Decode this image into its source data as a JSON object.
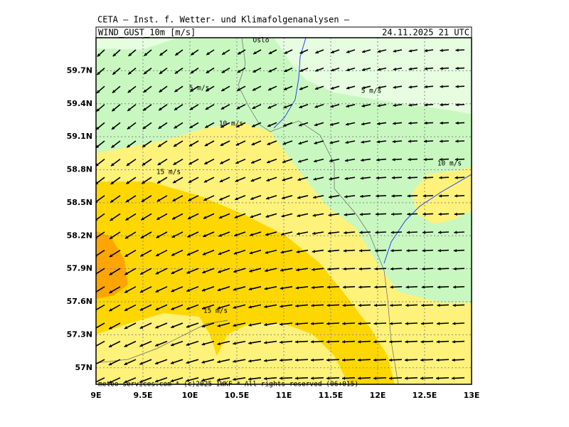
{
  "header": {
    "institute": "CETA – Inst. f. Wetter- und Klimafolgenanalysen –",
    "field": "WIND_GUST_10m [m/s]",
    "valid_time": "24.11.2025 21 UTC"
  },
  "map": {
    "lon_range": [
      9,
      13
    ],
    "lat_range": [
      56.85,
      60.0
    ],
    "lon_ticks": [
      {
        "value": 9,
        "label": "9E"
      },
      {
        "value": 9.5,
        "label": "9.5E"
      },
      {
        "value": 10,
        "label": "10E"
      },
      {
        "value": 10.5,
        "label": "10.5E"
      },
      {
        "value": 11,
        "label": "11E"
      },
      {
        "value": 11.5,
        "label": "11.5E"
      },
      {
        "value": 12,
        "label": "12E"
      },
      {
        "value": 12.5,
        "label": "12.5E"
      },
      {
        "value": 13,
        "label": "13E"
      }
    ],
    "lat_ticks": [
      {
        "value": 57,
        "label": "57N"
      },
      {
        "value": 57.3,
        "label": "57.3N"
      },
      {
        "value": 57.6,
        "label": "57.6N"
      },
      {
        "value": 57.9,
        "label": "57.9N"
      },
      {
        "value": 58.2,
        "label": "58.2N"
      },
      {
        "value": 58.5,
        "label": "58.5N"
      },
      {
        "value": 58.8,
        "label": "58.8N"
      },
      {
        "value": 59.1,
        "label": "59.1N"
      },
      {
        "value": 59.4,
        "label": "59.4N"
      },
      {
        "value": 59.7,
        "label": "59.7N"
      }
    ],
    "place_labels": [
      "Oslo"
    ],
    "contour_labels": [
      "5 m/s",
      "5 m/s",
      "10 m/s",
      "10 m/s",
      "15 m/s",
      "15 m/s"
    ],
    "footer": "meteo-services.com * (c)2025 IWKF * All rights reserved (06+015)"
  }
}
